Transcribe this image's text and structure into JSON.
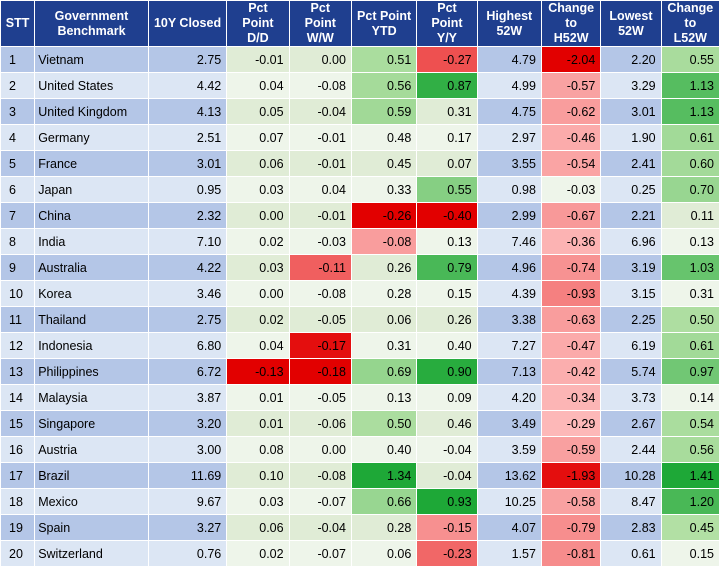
{
  "table": {
    "headers": [
      "STT",
      "Government\nBenchmark",
      "10Y Closed",
      "Pct\nPoint\nD/D",
      "Pct\nPoint\nW/W",
      "Pct Point\nYTD",
      "Pct\nPoint\nY/Y",
      "Highest\n52W",
      "Change\nto\nH52W",
      "Lowest\n52W",
      "Change\nto\nL52W"
    ],
    "rows": [
      {
        "stt": "1",
        "country": "Vietnam",
        "closed": "2.75",
        "dd": "-0.01",
        "ww": "0.00",
        "ytd": "0.51",
        "yy": "-0.27",
        "high": "4.79",
        "ch_high": "-2.04",
        "low": "2.20",
        "ch_low": "0.55"
      },
      {
        "stt": "2",
        "country": "United States",
        "closed": "4.42",
        "dd": "0.04",
        "ww": "-0.08",
        "ytd": "0.56",
        "yy": "0.87",
        "high": "4.99",
        "ch_high": "-0.57",
        "low": "3.29",
        "ch_low": "1.13"
      },
      {
        "stt": "3",
        "country": "United Kingdom",
        "closed": "4.13",
        "dd": "0.05",
        "ww": "-0.04",
        "ytd": "0.59",
        "yy": "0.31",
        "high": "4.75",
        "ch_high": "-0.62",
        "low": "3.01",
        "ch_low": "1.13"
      },
      {
        "stt": "4",
        "country": "Germany",
        "closed": "2.51",
        "dd": "0.07",
        "ww": "-0.01",
        "ytd": "0.48",
        "yy": "0.17",
        "high": "2.97",
        "ch_high": "-0.46",
        "low": "1.90",
        "ch_low": "0.61"
      },
      {
        "stt": "5",
        "country": "France",
        "closed": "3.01",
        "dd": "0.06",
        "ww": "-0.01",
        "ytd": "0.45",
        "yy": "0.07",
        "high": "3.55",
        "ch_high": "-0.54",
        "low": "2.41",
        "ch_low": "0.60"
      },
      {
        "stt": "6",
        "country": "Japan",
        "closed": "0.95",
        "dd": "0.03",
        "ww": "0.04",
        "ytd": "0.33",
        "yy": "0.55",
        "high": "0.98",
        "ch_high": "-0.03",
        "low": "0.25",
        "ch_low": "0.70"
      },
      {
        "stt": "7",
        "country": "China",
        "closed": "2.32",
        "dd": "0.00",
        "ww": "-0.01",
        "ytd": "-0.26",
        "yy": "-0.40",
        "high": "2.99",
        "ch_high": "-0.67",
        "low": "2.21",
        "ch_low": "0.11"
      },
      {
        "stt": "8",
        "country": "India",
        "closed": "7.10",
        "dd": "0.02",
        "ww": "-0.03",
        "ytd": "-0.08",
        "yy": "0.13",
        "high": "7.46",
        "ch_high": "-0.36",
        "low": "6.96",
        "ch_low": "0.13"
      },
      {
        "stt": "9",
        "country": "Australia",
        "closed": "4.22",
        "dd": "0.03",
        "ww": "-0.11",
        "ytd": "0.26",
        "yy": "0.79",
        "high": "4.96",
        "ch_high": "-0.74",
        "low": "3.19",
        "ch_low": "1.03"
      },
      {
        "stt": "10",
        "country": "Korea",
        "closed": "3.46",
        "dd": "0.00",
        "ww": "-0.08",
        "ytd": "0.28",
        "yy": "0.15",
        "high": "4.39",
        "ch_high": "-0.93",
        "low": "3.15",
        "ch_low": "0.31"
      },
      {
        "stt": "11",
        "country": "Thailand",
        "closed": "2.75",
        "dd": "0.02",
        "ww": "-0.05",
        "ytd": "0.06",
        "yy": "0.26",
        "high": "3.38",
        "ch_high": "-0.63",
        "low": "2.25",
        "ch_low": "0.50"
      },
      {
        "stt": "12",
        "country": "Indonesia",
        "closed": "6.80",
        "dd": "0.04",
        "ww": "-0.17",
        "ytd": "0.31",
        "yy": "0.40",
        "high": "7.27",
        "ch_high": "-0.47",
        "low": "6.19",
        "ch_low": "0.61"
      },
      {
        "stt": "13",
        "country": "Philippines",
        "closed": "6.72",
        "dd": "-0.13",
        "ww": "-0.18",
        "ytd": "0.69",
        "yy": "0.90",
        "high": "7.13",
        "ch_high": "-0.42",
        "low": "5.74",
        "ch_low": "0.97"
      },
      {
        "stt": "14",
        "country": "Malaysia",
        "closed": "3.87",
        "dd": "0.01",
        "ww": "-0.05",
        "ytd": "0.13",
        "yy": "0.09",
        "high": "4.20",
        "ch_high": "-0.34",
        "low": "3.73",
        "ch_low": "0.14"
      },
      {
        "stt": "15",
        "country": "Singapore",
        "closed": "3.20",
        "dd": "0.01",
        "ww": "-0.06",
        "ytd": "0.50",
        "yy": "0.46",
        "high": "3.49",
        "ch_high": "-0.29",
        "low": "2.67",
        "ch_low": "0.54"
      },
      {
        "stt": "16",
        "country": "Austria",
        "closed": "3.00",
        "dd": "0.08",
        "ww": "0.00",
        "ytd": "0.40",
        "yy": "-0.04",
        "high": "3.59",
        "ch_high": "-0.59",
        "low": "2.44",
        "ch_low": "0.56"
      },
      {
        "stt": "17",
        "country": "Brazil",
        "closed": "11.69",
        "dd": "0.10",
        "ww": "-0.08",
        "ytd": "1.34",
        "yy": "-0.04",
        "high": "13.62",
        "ch_high": "-1.93",
        "low": "10.28",
        "ch_low": "1.41"
      },
      {
        "stt": "18",
        "country": "Mexico",
        "closed": "9.67",
        "dd": "0.03",
        "ww": "-0.07",
        "ytd": "0.66",
        "yy": "0.93",
        "high": "10.25",
        "ch_high": "-0.58",
        "low": "8.47",
        "ch_low": "1.20"
      },
      {
        "stt": "19",
        "country": "Spain",
        "closed": "3.27",
        "dd": "0.06",
        "ww": "-0.04",
        "ytd": "0.28",
        "yy": "-0.15",
        "high": "4.07",
        "ch_high": "-0.79",
        "low": "2.83",
        "ch_low": "0.45"
      },
      {
        "stt": "20",
        "country": "Switzerland",
        "closed": "0.76",
        "dd": "0.02",
        "ww": "-0.07",
        "ytd": "0.06",
        "yy": "-0.23",
        "high": "1.57",
        "ch_high": "-0.81",
        "low": "0.61",
        "ch_low": "0.15"
      }
    ],
    "colors": {
      "header_bg": "#1f3f8f",
      "header_text": "#ffffff",
      "row_band_dark": "#b4c6e7",
      "row_band_light": "#dce6f4",
      "positive_strong": "#2eaa3b",
      "negative_strong": "#e00000"
    }
  }
}
